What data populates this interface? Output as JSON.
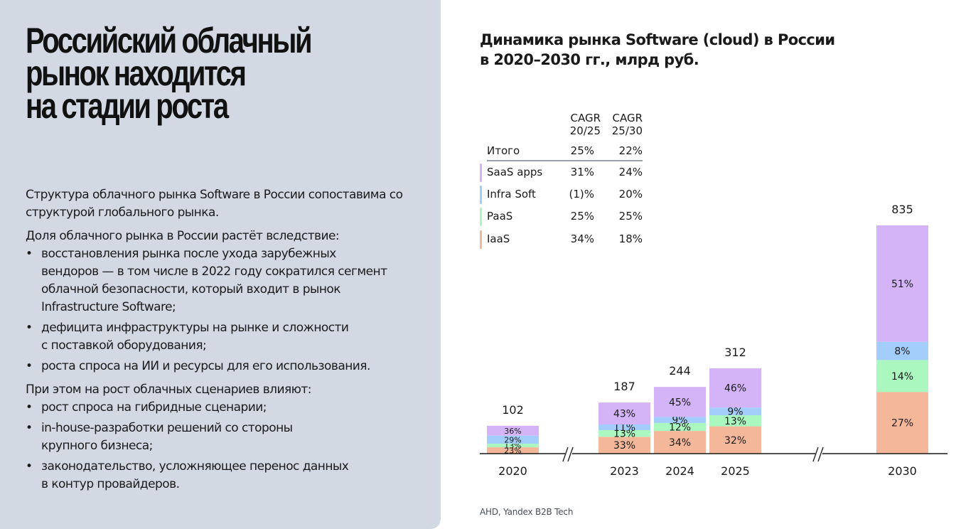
{
  "left_panel": {
    "title": "Российский облачный\nрынок находится\nна стадии роста",
    "paragraph_1": "Структура облачного рынка Software в России сопоставима со структурой глобального рынка.",
    "paragraph_2_head": "Доля облачного рынка в России растёт вследствие:",
    "paragraph_2_bullets": [
      "восстановления рынка после ухода зарубежных\nвендоров — в том числе в 2022 году сократился сегмент\nоблачной безопасности, который входит в рынок\nInfrastructure Software;",
      "дефицита инфраструктуры на рынке и сложности\nс поставкой оборудования;",
      "роста спроса на ИИ и ресурсы для его использования."
    ],
    "paragraph_3_head": "При этом на рост облачных сценариев влияют:",
    "paragraph_3_bullets": [
      "рост спроса на гибридные сценарии;",
      "in-house-разработки решений со стороны\nкрупного бизнеса;",
      "законодательство, усложняющее перенос данных\nв контур провайдеров."
    ],
    "bullet_glyph": "•"
  },
  "cagr_table": {
    "headers": [
      "CAGR\n20/25",
      "CAGR\n25/30"
    ],
    "rows": [
      {
        "label": "Итого",
        "cagr_20_25": "25%",
        "cagr_25_30": "22%",
        "color": null
      },
      {
        "label": "SaaS apps",
        "cagr_20_25": "31%",
        "cagr_25_30": "24%",
        "color": "#d4b3f7"
      },
      {
        "label": "Infra Soft",
        "cagr_20_25": "(1)%",
        "cagr_25_30": "20%",
        "color": "#a3cdfa"
      },
      {
        "label": "PaaS",
        "cagr_20_25": "25%",
        "cagr_25_30": "25%",
        "color": "#abf7c0"
      },
      {
        "label": "IaaS",
        "cagr_20_25": "34%",
        "cagr_25_30": "18%",
        "color": "#f4b79a"
      }
    ]
  },
  "chart_data": {
    "type": "bar",
    "stacked": true,
    "title": "Динамика рынка Software (cloud) в России\nв 2020–2030 гг., млрд руб.",
    "xlabel": "",
    "ylabel": "",
    "unit": "млрд руб.",
    "categories": [
      "2020",
      "2023",
      "2024",
      "2025",
      "2030"
    ],
    "totals": [
      102,
      187,
      244,
      312,
      835
    ],
    "axis_breaks_after": [
      "2020",
      "2025"
    ],
    "ylim": [
      0,
      835
    ],
    "grid": false,
    "legend": "top-left table",
    "series": [
      {
        "name": "IaaS",
        "color": "#f4b79a",
        "values_pct": [
          23,
          33,
          34,
          32,
          27
        ]
      },
      {
        "name": "PaaS",
        "color": "#abf7c0",
        "values_pct": [
          13,
          13,
          12,
          13,
          14
        ]
      },
      {
        "name": "Infra Soft",
        "color": "#a3cdfa",
        "values_pct": [
          29,
          11,
          9,
          9,
          8
        ]
      },
      {
        "name": "SaaS apps",
        "color": "#d4b3f7",
        "values_pct": [
          36,
          43,
          45,
          46,
          51
        ]
      }
    ],
    "label_bars": {
      "2020": [
        "23%",
        "13%",
        "29%",
        "36%"
      ],
      "2023": [
        "33%",
        "13%",
        "11%",
        "43%"
      ],
      "2024": [
        "34%",
        "12%",
        "9%",
        "45%"
      ],
      "2025": [
        "32%",
        "13%",
        "9%",
        "46%"
      ],
      "2030": [
        "27%",
        "14%",
        "8%",
        "51%"
      ]
    }
  },
  "source": "AHD, Yandex B2B Tech"
}
